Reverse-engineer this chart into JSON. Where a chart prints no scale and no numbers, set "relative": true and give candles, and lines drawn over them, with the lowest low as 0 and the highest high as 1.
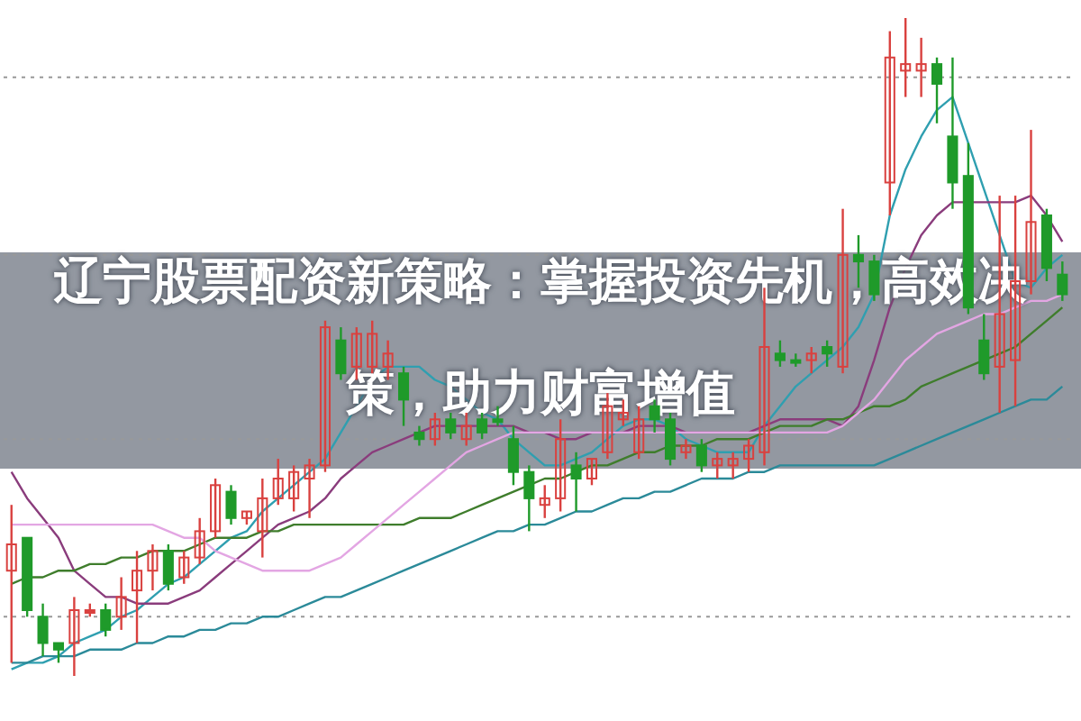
{
  "chart_data": {
    "type": "candlestick",
    "title": "辽宁股票配资新策略：掌握投资先机，高效决策，助力财富增值",
    "relative": true,
    "categories": [
      null,
      null,
      null,
      null,
      null,
      null,
      null,
      null,
      null,
      null,
      null,
      null,
      null,
      null,
      null,
      null,
      null,
      null,
      null,
      null,
      null,
      null,
      null,
      null,
      null,
      null,
      null,
      null,
      null,
      null,
      null,
      null,
      null,
      null,
      null,
      null,
      null,
      null,
      null,
      null,
      null,
      null,
      null,
      null,
      null,
      null,
      null,
      null,
      null,
      null,
      null,
      null,
      null,
      null,
      null,
      null,
      null,
      null,
      null,
      null,
      null,
      null,
      null,
      null,
      null,
      null,
      null,
      null
    ],
    "ohlc": [
      [
        0.16,
        0.26,
        0.02,
        0.2
      ],
      [
        0.21,
        0.21,
        0.09,
        0.1
      ],
      [
        0.09,
        0.11,
        0.03,
        0.05
      ],
      [
        0.05,
        0.05,
        0.02,
        0.04
      ],
      [
        0.05,
        0.12,
        0,
        0.1
      ],
      [
        0.1,
        0.11,
        0.09,
        0.1
      ],
      [
        0.1,
        0.11,
        0.06,
        0.07
      ],
      [
        0.09,
        0.15,
        0.07,
        0.12
      ],
      [
        0.13,
        0.19,
        0.05,
        0.16
      ],
      [
        0.16,
        0.2,
        0.13,
        0.19
      ],
      [
        0.19,
        0.2,
        0.13,
        0.14
      ],
      [
        0.15,
        0.19,
        0.14,
        0.18
      ],
      [
        0.18,
        0.24,
        0.17,
        0.22
      ],
      [
        0.22,
        0.3,
        0.21,
        0.29
      ],
      [
        0.28,
        0.29,
        0.23,
        0.24
      ],
      [
        0.24,
        0.25,
        0.23,
        0.25
      ],
      [
        0.22,
        0.3,
        0.18,
        0.27
      ],
      [
        0.27,
        0.33,
        0.26,
        0.3
      ],
      [
        0.27,
        0.32,
        0.25,
        0.31
      ],
      [
        0.3,
        0.33,
        0.24,
        0.32
      ],
      [
        0.32,
        0.54,
        0.31,
        0.53
      ],
      [
        0.51,
        0.53,
        0.45,
        0.46
      ],
      [
        0.47,
        0.53,
        0.45,
        0.52
      ],
      [
        0.47,
        0.54,
        0.46,
        0.52
      ],
      [
        0.47,
        0.51,
        0.45,
        0.49
      ],
      [
        0.46,
        0.47,
        0.38,
        0.42
      ],
      [
        0.37,
        0.38,
        0.35,
        0.36
      ],
      [
        0.36,
        0.4,
        0.35,
        0.39
      ],
      [
        0.39,
        0.4,
        0.36,
        0.37
      ],
      [
        0.36,
        0.4,
        0.35,
        0.38
      ],
      [
        0.39,
        0.4,
        0.36,
        0.37
      ],
      [
        0.39,
        0.41,
        0.38,
        0.39
      ],
      [
        0.36,
        0.38,
        0.29,
        0.31
      ],
      [
        0.31,
        0.32,
        0.22,
        0.27
      ],
      [
        0.26,
        0.29,
        0.24,
        0.27
      ],
      [
        0.27,
        0.39,
        0.25,
        0.36
      ],
      [
        0.32,
        0.34,
        0.25,
        0.3
      ],
      [
        0.3,
        0.33,
        0.29,
        0.33
      ],
      [
        0.34,
        0.43,
        0.33,
        0.41
      ],
      [
        0.39,
        0.42,
        0.38,
        0.4
      ],
      [
        0.34,
        0.41,
        0.33,
        0.39
      ],
      [
        0.41,
        0.42,
        0.37,
        0.39
      ],
      [
        0.39,
        0.4,
        0.32,
        0.33
      ],
      [
        0.34,
        0.36,
        0.33,
        0.35
      ],
      [
        0.35,
        0.36,
        0.31,
        0.32
      ],
      [
        0.32,
        0.34,
        0.3,
        0.33
      ],
      [
        0.32,
        0.34,
        0.3,
        0.33
      ],
      [
        0.33,
        0.36,
        0.31,
        0.35
      ],
      [
        0.34,
        0.59,
        0.32,
        0.5
      ],
      [
        0.49,
        0.51,
        0.47,
        0.48
      ],
      [
        0.48,
        0.49,
        0.47,
        0.48
      ],
      [
        0.48,
        0.5,
        0.46,
        0.49
      ],
      [
        0.5,
        0.51,
        0.47,
        0.49
      ],
      [
        0.47,
        0.71,
        0.46,
        0.64
      ],
      [
        0.64,
        0.67,
        0.59,
        0.63
      ],
      [
        0.63,
        0.64,
        0.57,
        0.58
      ],
      [
        0.75,
        0.98,
        0.7,
        0.94
      ],
      [
        0.92,
        1,
        0.88,
        0.93
      ],
      [
        0.92,
        0.97,
        0.88,
        0.93
      ],
      [
        0.93,
        0.94,
        0.84,
        0.9
      ],
      [
        0.82,
        0.94,
        0.71,
        0.75
      ],
      [
        0.76,
        0.81,
        0.55,
        0.56
      ],
      [
        0.51,
        0.55,
        0.45,
        0.46
      ],
      [
        0.47,
        0.73,
        0.4,
        0.55
      ],
      [
        0.48,
        0.73,
        0.41,
        0.6
      ],
      [
        0.6,
        0.83,
        0.58,
        0.69
      ],
      [
        0.7,
        0.71,
        0.6,
        0.62
      ],
      [
        0.61,
        0.63,
        0.57,
        0.58
      ]
    ],
    "colors": [
      "#d9413f",
      "#1f9a2a",
      "#1f9a2a",
      "#1f9a2a",
      "#d9413f",
      "#d9413f",
      "#1f9a2a",
      "#d9413f",
      "#d9413f",
      "#d9413f",
      "#1f9a2a",
      "#d9413f",
      "#d9413f",
      "#d9413f",
      "#1f9a2a",
      "#d9413f",
      "#d9413f",
      "#d9413f",
      "#d9413f",
      "#d9413f",
      "#d9413f",
      "#1f9a2a",
      "#d9413f",
      "#d9413f",
      "#d9413f",
      "#1f9a2a",
      "#1f9a2a",
      "#d9413f",
      "#1f9a2a",
      "#d9413f",
      "#1f9a2a",
      "#1f9a2a",
      "#1f9a2a",
      "#1f9a2a",
      "#d9413f",
      "#d9413f",
      "#1f9a2a",
      "#d9413f",
      "#d9413f",
      "#d9413f",
      "#d9413f",
      "#1f9a2a",
      "#1f9a2a",
      "#d9413f",
      "#1f9a2a",
      "#d9413f",
      "#d9413f",
      "#d9413f",
      "#d9413f",
      "#1f9a2a",
      "#1f9a2a",
      "#d9413f",
      "#1f9a2a",
      "#d9413f",
      "#1f9a2a",
      "#1f9a2a",
      "#d9413f",
      "#d9413f",
      "#d9413f",
      "#1f9a2a",
      "#1f9a2a",
      "#1f9a2a",
      "#1f9a2a",
      "#d9413f",
      "#d9413f",
      "#d9413f",
      "#1f9a2a",
      "#1f9a2a"
    ],
    "series": [
      {
        "type": "line",
        "color": "#2f9fb0",
        "values": [
          0.01,
          0.02,
          0.02,
          0.03,
          0.05,
          0.06,
          0.07,
          0.09,
          0.1,
          0.12,
          0.14,
          0.15,
          0.17,
          0.19,
          0.21,
          0.22,
          0.25,
          0.27,
          0.29,
          0.31,
          0.33,
          0.37,
          0.41,
          0.45,
          0.47,
          0.47,
          0.47,
          0.45,
          0.44,
          0.42,
          0.4,
          0.39,
          0.36,
          0.34,
          0.32,
          0.32,
          0.33,
          0.34,
          0.36,
          0.38,
          0.39,
          0.39,
          0.38,
          0.36,
          0.35,
          0.34,
          0.34,
          0.34,
          0.38,
          0.41,
          0.44,
          0.46,
          0.48,
          0.5,
          0.53,
          0.58,
          0.7,
          0.77,
          0.82,
          0.86,
          0.88,
          0.81,
          0.74,
          0.67,
          0.6,
          0.59,
          0.62,
          0.64
        ]
      },
      {
        "type": "line",
        "color": "#8a3c7c",
        "values": [
          0.31,
          0.27,
          0.24,
          0.21,
          0.16,
          0.14,
          0.12,
          0.12,
          0.11,
          0.11,
          0.11,
          0.12,
          0.13,
          0.15,
          0.17,
          0.19,
          0.21,
          0.23,
          0.24,
          0.25,
          0.27,
          0.3,
          0.32,
          0.34,
          0.35,
          0.36,
          0.37,
          0.38,
          0.38,
          0.38,
          0.38,
          0.38,
          0.38,
          0.37,
          0.37,
          0.36,
          0.36,
          0.37,
          0.37,
          0.37,
          0.38,
          0.38,
          0.38,
          0.37,
          0.37,
          0.37,
          0.37,
          0.37,
          0.38,
          0.39,
          0.39,
          0.39,
          0.39,
          0.38,
          0.41,
          0.48,
          0.56,
          0.62,
          0.67,
          0.7,
          0.72,
          0.72,
          0.72,
          0.72,
          0.72,
          0.73,
          0.7,
          0.66
        ]
      },
      {
        "type": "line",
        "color": "#3f7d2c",
        "values": [
          0.14,
          0.15,
          0.15,
          0.16,
          0.16,
          0.17,
          0.17,
          0.18,
          0.18,
          0.19,
          0.19,
          0.19,
          0.2,
          0.21,
          0.21,
          0.21,
          0.22,
          0.22,
          0.23,
          0.23,
          0.23,
          0.23,
          0.23,
          0.23,
          0.23,
          0.23,
          0.24,
          0.24,
          0.24,
          0.25,
          0.26,
          0.27,
          0.28,
          0.29,
          0.3,
          0.3,
          0.31,
          0.32,
          0.32,
          0.33,
          0.34,
          0.34,
          0.35,
          0.35,
          0.35,
          0.36,
          0.36,
          0.36,
          0.37,
          0.38,
          0.38,
          0.38,
          0.39,
          0.39,
          0.4,
          0.41,
          0.41,
          0.42,
          0.44,
          0.45,
          0.46,
          0.47,
          0.48,
          0.49,
          0.5,
          0.52,
          0.54,
          0.56
        ]
      },
      {
        "type": "line",
        "color": "#e3a6e3",
        "values": [
          0.23,
          0.23,
          0.23,
          0.23,
          0.23,
          0.23,
          0.23,
          0.23,
          0.23,
          0.23,
          0.22,
          0.21,
          0.21,
          0.19,
          0.18,
          0.17,
          0.16,
          0.16,
          0.16,
          0.16,
          0.17,
          0.18,
          0.2,
          0.22,
          0.24,
          0.26,
          0.28,
          0.3,
          0.32,
          0.34,
          0.35,
          0.36,
          0.37,
          0.37,
          0.37,
          0.37,
          0.37,
          0.37,
          0.37,
          0.37,
          0.37,
          0.37,
          0.37,
          0.37,
          0.37,
          0.37,
          0.37,
          0.37,
          0.37,
          0.37,
          0.37,
          0.37,
          0.37,
          0.38,
          0.4,
          0.42,
          0.45,
          0.48,
          0.5,
          0.52,
          0.53,
          0.54,
          0.55,
          0.55,
          0.56,
          0.57,
          0.57,
          0.58
        ]
      },
      {
        "type": "line",
        "color": "#2b8a99",
        "values": [
          0.02,
          0.02,
          0.03,
          0.03,
          0.03,
          0.04,
          0.04,
          0.04,
          0.05,
          0.05,
          0.06,
          0.06,
          0.07,
          0.07,
          0.08,
          0.08,
          0.09,
          0.09,
          0.1,
          0.11,
          0.12,
          0.12,
          0.13,
          0.14,
          0.15,
          0.16,
          0.17,
          0.18,
          0.19,
          0.2,
          0.21,
          0.22,
          0.22,
          0.23,
          0.23,
          0.24,
          0.25,
          0.25,
          0.26,
          0.27,
          0.27,
          0.28,
          0.28,
          0.29,
          0.3,
          0.3,
          0.3,
          0.31,
          0.31,
          0.32,
          0.32,
          0.32,
          0.32,
          0.32,
          0.32,
          0.32,
          0.33,
          0.34,
          0.35,
          0.36,
          0.37,
          0.38,
          0.39,
          0.4,
          0.41,
          0.42,
          0.42,
          0.44
        ]
      }
    ],
    "ref_lines": [
      {
        "axis": "y",
        "value": 0.91,
        "color": "#999999",
        "line_style": "dotted"
      },
      {
        "axis": "y",
        "value": 0.64,
        "color": "#999999",
        "line_style": "dotted"
      },
      {
        "axis": "y",
        "value": 0.36,
        "color": "#999999",
        "line_style": "dotted"
      },
      {
        "axis": "y",
        "value": 0.09,
        "color": "#999999",
        "line_style": "dotted"
      }
    ]
  }
}
